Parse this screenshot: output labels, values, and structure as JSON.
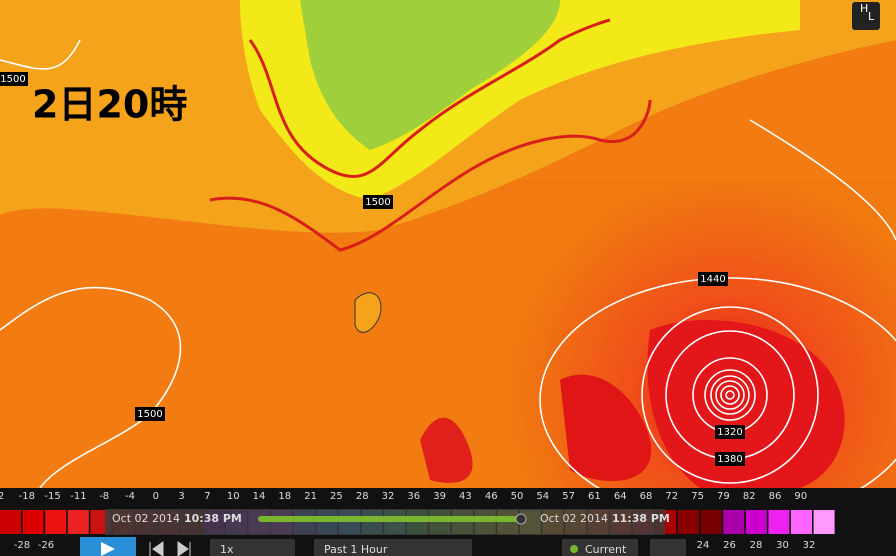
{
  "map": {
    "time_label": "2日20時",
    "contour_labels": [
      1500,
      1500,
      1500,
      1440,
      1320,
      1380
    ],
    "logo_letters": [
      "H",
      "L"
    ]
  },
  "legend": {
    "upper_scale": [
      2,
      -18,
      -15,
      -11,
      -8,
      -4,
      0,
      3,
      7,
      10,
      14,
      18,
      21,
      25,
      28,
      32,
      36,
      39,
      43,
      46,
      50,
      54,
      57,
      61,
      64,
      68,
      72,
      75,
      79,
      82,
      86,
      90
    ],
    "lower_scale_left": [
      -28,
      -26
    ],
    "lower_scale_right": [
      24,
      26,
      28,
      30,
      32
    ]
  },
  "timeline": {
    "start_date": "Oct 02 2014",
    "start_time": "10:38 PM",
    "end_date": "Oct 02 2014",
    "end_time": "11:38 PM"
  },
  "controls": {
    "speed": "1x",
    "range": "Past 1 Hour",
    "current": "Current"
  }
}
